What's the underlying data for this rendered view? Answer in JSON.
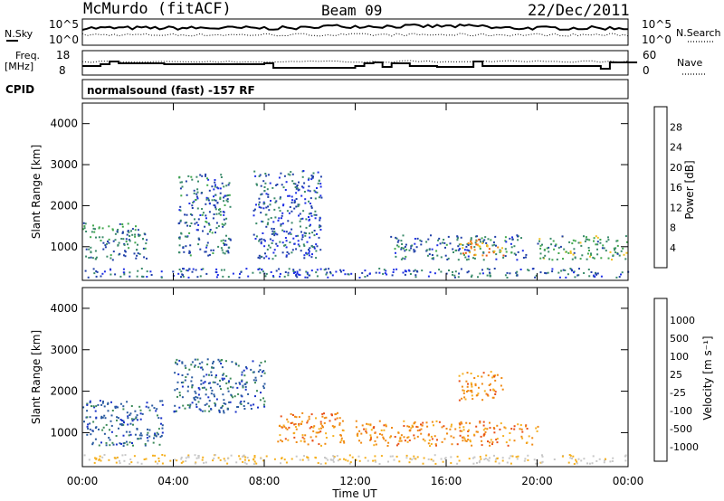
{
  "header": {
    "station": "McMurdo (fitACF)",
    "beam": "Beam 09",
    "date": "22/Dec/2011"
  },
  "panels": {
    "noise": {
      "left_label": "N.Sky",
      "right_label": "N.Search",
      "left_ticks": [
        "10^5",
        "10^0"
      ],
      "right_ticks": [
        "10^5",
        "10^0"
      ]
    },
    "freq": {
      "left_label_line1": "Freq.",
      "left_label_line2": "[MHz]",
      "right_label": "Nave",
      "left_ticks": [
        "18",
        "8"
      ],
      "right_ticks": [
        "60",
        "0"
      ]
    },
    "cpid": {
      "label": "CPID",
      "text": "normalsound (fast) -157 RF"
    }
  },
  "axes": {
    "ylabel": "Slant Range [km]",
    "xlabel": "Time UT",
    "yticks": [
      "1000",
      "2000",
      "3000",
      "4000"
    ],
    "xticks": [
      "00:00",
      "04:00",
      "08:00",
      "12:00",
      "16:00",
      "20:00",
      "00:00"
    ]
  },
  "colorbars": {
    "power": {
      "label": "Power [dB]",
      "ticks": [
        "4",
        "8",
        "12",
        "16",
        "20",
        "24",
        "28"
      ],
      "colors": [
        "#1f2fe6",
        "#2040a8",
        "#3a8a6a",
        "#41a84d",
        "#f0c020",
        "#f08a18",
        "#e85a10",
        "#e01010"
      ]
    },
    "velocity": {
      "label": "Velocity [m s⁻¹]",
      "ticks": [
        "1000",
        "500",
        "100",
        "25",
        "-25",
        "-100",
        "-500",
        "-1000"
      ],
      "colors": [
        "#1a32c8",
        "#2a5aa0",
        "#3d8a5a",
        "#5ab840",
        "#c8c8c8",
        "#f5b020",
        "#f08a14",
        "#e85018",
        "#e01010"
      ]
    }
  },
  "chart_data": [
    {
      "type": "heatmap",
      "title": "Power",
      "x_range": [
        "00:00",
        "24:00"
      ],
      "ylim": [
        180,
        4500
      ],
      "scatter_regions": [
        {
          "t_start_h": 0.0,
          "t_end_h": 2.8,
          "range_min_km": 700,
          "range_max_km": 1600,
          "level_db": 12
        },
        {
          "t_start_h": 4.2,
          "t_end_h": 6.5,
          "range_min_km": 800,
          "range_max_km": 2800,
          "level_db": 10
        },
        {
          "t_start_h": 7.5,
          "t_end_h": 10.5,
          "range_min_km": 700,
          "range_max_km": 2900,
          "level_db": 8
        },
        {
          "t_start_h": 13.5,
          "t_end_h": 19.5,
          "range_min_km": 700,
          "range_max_km": 1300,
          "level_db": 10
        },
        {
          "t_start_h": 16.5,
          "t_end_h": 18.5,
          "range_min_km": 800,
          "range_max_km": 1200,
          "level_db": 24
        },
        {
          "t_start_h": 20.0,
          "t_end_h": 24.0,
          "range_min_km": 700,
          "range_max_km": 1300,
          "level_db": 14
        }
      ]
    },
    {
      "type": "heatmap",
      "title": "Velocity",
      "x_range": [
        "00:00",
        "24:00"
      ],
      "ylim": [
        180,
        4500
      ],
      "scatter_regions": [
        {
          "t_start_h": 0.0,
          "t_end_h": 3.5,
          "range_min_km": 700,
          "range_max_km": 1800,
          "velocity_ms": 300
        },
        {
          "t_start_h": 4.0,
          "t_end_h": 8.0,
          "range_min_km": 1500,
          "range_max_km": 2800,
          "velocity_ms": 200
        },
        {
          "t_start_h": 8.5,
          "t_end_h": 11.5,
          "range_min_km": 700,
          "range_max_km": 1500,
          "velocity_ms": -300
        },
        {
          "t_start_h": 12.0,
          "t_end_h": 20.0,
          "range_min_km": 700,
          "range_max_km": 1300,
          "velocity_ms": -300
        },
        {
          "t_start_h": 16.5,
          "t_end_h": 18.5,
          "range_min_km": 1800,
          "range_max_km": 2500,
          "velocity_ms": -300
        }
      ]
    }
  ]
}
